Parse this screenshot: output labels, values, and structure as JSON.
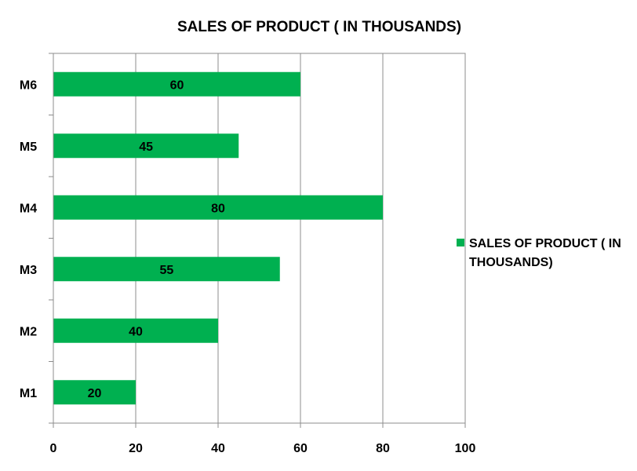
{
  "chart_data": {
    "type": "bar",
    "orientation": "horizontal",
    "title": "SALES OF PRODUCT ( IN THOUSANDS)",
    "categories": [
      "M1",
      "M2",
      "M3",
      "M4",
      "M5",
      "M6"
    ],
    "series": [
      {
        "name": "SALES OF PRODUCT ( IN THOUSANDS)",
        "values": [
          20,
          40,
          55,
          80,
          45,
          60
        ],
        "color": "#00b050"
      }
    ],
    "xlim": [
      0,
      100
    ],
    "xticks": [
      0,
      20,
      40,
      60,
      80,
      100
    ],
    "xlabel": "",
    "ylabel": "",
    "grid": "vertical major gridlines",
    "data_labels": true,
    "legend": {
      "position": "right",
      "lines": [
        "SALES OF PRODUCT ( IN",
        "THOUSANDS)"
      ]
    }
  }
}
